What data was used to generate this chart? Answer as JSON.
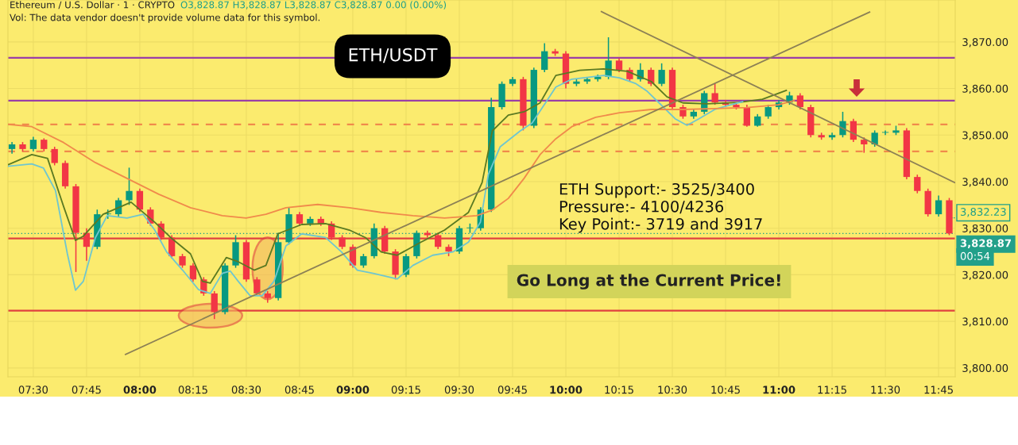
{
  "chart_data": {
    "type": "candlestick",
    "x": [
      7.4,
      7.45,
      7.5,
      7.55,
      7.6,
      7.65,
      7.7,
      7.75,
      7.8,
      7.85,
      7.9,
      7.95,
      8.0,
      8.05,
      8.1,
      8.15,
      8.2,
      8.25,
      8.3,
      8.35,
      8.4,
      8.45,
      8.5,
      8.55,
      8.6,
      8.65,
      8.7,
      8.75,
      8.8,
      8.85,
      8.9,
      8.95,
      9.0,
      9.05,
      9.1,
      9.15,
      9.2,
      9.25,
      9.3,
      9.35,
      9.4,
      9.45,
      9.5,
      9.55,
      9.6,
      9.65,
      9.7,
      9.75,
      9.8,
      9.85,
      9.9,
      9.95,
      10.0,
      10.05,
      10.1,
      10.15,
      10.2,
      10.25,
      10.3,
      10.35,
      10.4,
      10.45,
      10.5,
      10.55,
      10.6,
      10.65,
      10.7,
      10.75,
      10.8,
      10.85,
      10.9,
      10.95,
      11.0,
      11.05,
      11.1,
      11.15,
      11.2,
      11.25,
      11.3,
      11.35,
      11.4,
      11.45,
      11.5,
      11.55,
      11.6,
      11.65,
      11.7,
      11.75,
      11.8
    ],
    "ohlc": [
      [
        3847,
        3848.5,
        3846,
        3848
      ],
      [
        3848,
        3848.5,
        3846.5,
        3847
      ],
      [
        3847,
        3849.6,
        3846.5,
        3849
      ],
      [
        3849,
        3849.3,
        3846.5,
        3847
      ],
      [
        3847,
        3847.5,
        3843.5,
        3844
      ],
      [
        3844,
        3844.5,
        3838.5,
        3839
      ],
      [
        3839,
        3839.5,
        3820.6,
        3829
      ],
      [
        3829,
        3830,
        3823,
        3826
      ],
      [
        3826,
        3834,
        3825.5,
        3833
      ],
      [
        3833,
        3834,
        3832,
        3833
      ],
      [
        3833,
        3836.5,
        3832.5,
        3836
      ],
      [
        3836,
        3843,
        3835,
        3838
      ],
      [
        3838,
        3838.5,
        3833.5,
        3834
      ],
      [
        3834,
        3834.5,
        3830.5,
        3831
      ],
      [
        3831,
        3831.5,
        3827.5,
        3828
      ],
      [
        3828,
        3828.5,
        3823.5,
        3824
      ],
      [
        3824,
        3824.5,
        3821.5,
        3822
      ],
      [
        3822,
        3822.5,
        3818.5,
        3819
      ],
      [
        3819,
        3819.5,
        3815.5,
        3816
      ],
      [
        3816,
        3816.5,
        3810.5,
        3812
      ],
      [
        3812,
        3822.5,
        3811.5,
        3822
      ],
      [
        3822,
        3828.5,
        3821.5,
        3827
      ],
      [
        3827,
        3827.5,
        3818.5,
        3819
      ],
      [
        3819,
        3819.5,
        3815.5,
        3816
      ],
      [
        3816,
        3816.5,
        3814,
        3815
      ],
      [
        3815,
        3829,
        3814.5,
        3827
      ],
      [
        3827,
        3834.5,
        3826.5,
        3833
      ],
      [
        3833,
        3833.5,
        3830.5,
        3831
      ],
      [
        3831,
        3832.5,
        3830.5,
        3832
      ],
      [
        3832,
        3832.5,
        3830.5,
        3831
      ],
      [
        3831,
        3831.5,
        3827.5,
        3828
      ],
      [
        3828,
        3828.5,
        3825.5,
        3826
      ],
      [
        3826,
        3826.5,
        3821.5,
        3822
      ],
      [
        3822,
        3824.5,
        3821.5,
        3824
      ],
      [
        3824,
        3831,
        3823.5,
        3830
      ],
      [
        3830,
        3830.5,
        3824.5,
        3825
      ],
      [
        3825,
        3825.5,
        3819,
        3820
      ],
      [
        3820,
        3824.5,
        3819.5,
        3824
      ],
      [
        3824,
        3829.5,
        3823.5,
        3829
      ],
      [
        3829,
        3829.5,
        3828,
        3828.5
      ],
      [
        3828.5,
        3829,
        3825.5,
        3826
      ],
      [
        3826,
        3826.5,
        3824,
        3825
      ],
      [
        3825,
        3830.5,
        3824.5,
        3830
      ],
      [
        3830,
        3831,
        3829,
        3830
      ],
      [
        3830,
        3834.5,
        3829.5,
        3834
      ],
      [
        3834,
        3858,
        3833.5,
        3856
      ],
      [
        3856,
        3861.5,
        3855.5,
        3861
      ],
      [
        3861,
        3862.5,
        3860.5,
        3862
      ],
      [
        3862,
        3862.5,
        3851,
        3852
      ],
      [
        3852,
        3864.5,
        3851.5,
        3864
      ],
      [
        3864,
        3869.7,
        3863.5,
        3868
      ],
      [
        3868,
        3868.5,
        3867,
        3867.5
      ],
      [
        3867.5,
        3868,
        3860,
        3861
      ],
      [
        3861,
        3862,
        3860.5,
        3861.5
      ],
      [
        3861.5,
        3862.5,
        3861,
        3862
      ],
      [
        3862,
        3863,
        3861.5,
        3862.5
      ],
      [
        3862.5,
        3871,
        3862,
        3866
      ],
      [
        3866,
        3866.5,
        3863.5,
        3864
      ],
      [
        3864,
        3864.5,
        3861.5,
        3862
      ],
      [
        3862,
        3865.4,
        3861.5,
        3864
      ],
      [
        3864,
        3864.5,
        3860.5,
        3861
      ],
      [
        3861,
        3865.4,
        3860.5,
        3864
      ],
      [
        3864,
        3864.5,
        3855.5,
        3856
      ],
      [
        3856,
        3856.5,
        3853.5,
        3854
      ],
      [
        3854,
        3855.5,
        3853.5,
        3855
      ],
      [
        3855,
        3859.5,
        3854.5,
        3859
      ],
      [
        3859,
        3861.1,
        3856.5,
        3857
      ],
      [
        3857,
        3857.5,
        3856,
        3856.5
      ],
      [
        3856.5,
        3857,
        3855.5,
        3856
      ],
      [
        3856,
        3856.5,
        3851.8,
        3852
      ],
      [
        3852,
        3854.5,
        3851.8,
        3854
      ],
      [
        3854,
        3856.5,
        3853.5,
        3856
      ],
      [
        3856,
        3857.5,
        3855.5,
        3857
      ],
      [
        3857,
        3859.3,
        3856.5,
        3858.5
      ],
      [
        3858.5,
        3859,
        3855.5,
        3856
      ],
      [
        3856,
        3856.5,
        3849.5,
        3850
      ],
      [
        3850,
        3850.5,
        3849,
        3849.5
      ],
      [
        3849.5,
        3850.5,
        3849,
        3850
      ],
      [
        3850,
        3855,
        3849.5,
        3853
      ],
      [
        3853,
        3853.5,
        3848.5,
        3849
      ],
      [
        3849,
        3849.5,
        3846.2,
        3848
      ],
      [
        3848,
        3851,
        3847.5,
        3850.5
      ],
      [
        3850.5,
        3851,
        3850,
        3850.5
      ],
      [
        3850.5,
        3852,
        3850,
        3851
      ],
      [
        3851,
        3851.5,
        3840.5,
        3841
      ],
      [
        3841,
        3841.5,
        3837.5,
        3838
      ],
      [
        3838,
        3838.5,
        3832.5,
        3833
      ],
      [
        3833,
        3837,
        3832.5,
        3836
      ],
      [
        3836,
        3836.5,
        3828.5,
        3828.87
      ]
    ],
    "series": [
      {
        "type": "line",
        "color": "#5b7a22",
        "x": [
          7.381,
          7.493,
          7.567,
          7.642,
          7.698,
          7.735,
          7.828,
          7.959,
          8.07,
          8.145,
          8.238,
          8.294,
          8.331,
          8.406,
          8.462,
          8.537,
          8.592,
          8.648,
          8.76,
          8.872,
          8.984,
          9.059,
          9.133,
          9.208,
          9.32,
          9.431,
          9.543,
          9.607,
          9.655,
          9.73,
          9.804,
          9.879,
          9.953,
          10.065,
          10.177,
          10.289,
          10.401,
          10.475,
          10.55,
          10.662,
          10.811,
          10.923,
          11.035
        ],
        "values": [
          3843.6,
          3845.8,
          3845,
          3834.7,
          3827.4,
          3828.3,
          3833,
          3835.6,
          3831.3,
          3828,
          3824.5,
          3818.6,
          3818.2,
          3823.7,
          3822.8,
          3821,
          3822,
          3828.8,
          3830.8,
          3831,
          3829.6,
          3828,
          3824.9,
          3824.2,
          3827,
          3829.6,
          3833.4,
          3839.8,
          3850.9,
          3854.3,
          3855,
          3856.9,
          3862.8,
          3863.9,
          3864.2,
          3863.7,
          3861.5,
          3858.2,
          3856.9,
          3856.7,
          3857,
          3857.7,
          3859.6
        ]
      },
      {
        "type": "line",
        "color": "#6fc6cf",
        "x": [
          7.381,
          7.493,
          7.548,
          7.604,
          7.66,
          7.698,
          7.735,
          7.791,
          7.847,
          7.94,
          8.015,
          8.07,
          8.126,
          8.201,
          8.276,
          8.331,
          8.387,
          8.425,
          8.462,
          8.518,
          8.574,
          8.63,
          8.686,
          8.76,
          8.872,
          8.947,
          9.021,
          9.096,
          9.208,
          9.282,
          9.375,
          9.469,
          9.543,
          9.599,
          9.636,
          9.692,
          9.786,
          9.842,
          9.916,
          9.953,
          10.028,
          10.177,
          10.252,
          10.326,
          10.382,
          10.438,
          10.513,
          10.569,
          10.625,
          10.699,
          10.774,
          10.83
        ],
        "values": [
          3843.3,
          3843.8,
          3842.9,
          3838.1,
          3824.5,
          3816.7,
          3818.6,
          3827.9,
          3832.7,
          3832.2,
          3833,
          3829.6,
          3824.9,
          3821,
          3816.8,
          3816,
          3820.3,
          3820.8,
          3818.6,
          3815.5,
          3815.5,
          3818.6,
          3826.2,
          3828.8,
          3828,
          3824.9,
          3821,
          3820.3,
          3819.1,
          3822,
          3824.2,
          3824.9,
          3827,
          3831.3,
          3841.5,
          3847.5,
          3850.9,
          3852.6,
          3857.7,
          3860.3,
          3862,
          3862.8,
          3862.3,
          3861.1,
          3859.4,
          3856.9,
          3853.5,
          3852.1,
          3853.5,
          3855.5,
          3856.5,
          3857.2
        ]
      },
      {
        "type": "line",
        "color": "#f08a4b",
        "x": [
          7.381,
          7.493,
          7.642,
          7.791,
          7.94,
          8.089,
          8.238,
          8.387,
          8.499,
          8.592,
          8.686,
          8.835,
          8.984,
          9.133,
          9.282,
          9.431,
          9.581,
          9.655,
          9.73,
          9.804,
          9.879,
          9.953,
          10.028,
          10.14,
          10.252,
          10.401,
          10.55,
          10.699,
          10.848,
          10.997,
          11.072
        ],
        "values": [
          3852.3,
          3851.8,
          3848.4,
          3844.1,
          3840.7,
          3837.3,
          3834.4,
          3832.7,
          3832.2,
          3833,
          3834.4,
          3835.1,
          3834.4,
          3833.4,
          3832.7,
          3832.2,
          3832.7,
          3833.9,
          3836.4,
          3840.7,
          3845.8,
          3849.2,
          3851.8,
          3853.8,
          3854.8,
          3855.5,
          3855.5,
          3855.7,
          3855.9,
          3856.5,
          3857.4
        ]
      },
      {
        "type": "line",
        "color": "#8c8055",
        "x": [
          7.933,
          11.426
        ],
        "values": [
          3802.9,
          3876.4
        ]
      },
      {
        "type": "line",
        "color": "#8c8055",
        "x": [
          10.167,
          11.825
        ],
        "values": [
          3876.5,
          3839.8
        ]
      }
    ],
    "ref_lines": [
      {
        "axis": "y",
        "value": 3866.6,
        "color": "#9a3fa6",
        "line_style": "solid"
      },
      {
        "axis": "y",
        "value": 3857.4,
        "color": "#9a3fa6",
        "line_style": "solid"
      },
      {
        "axis": "y",
        "value": 3852.3,
        "color": "#f08a4b",
        "line_style": "dashed"
      },
      {
        "axis": "y",
        "value": 3846.5,
        "color": "#f08a4b",
        "line_style": "dashed"
      },
      {
        "axis": "y",
        "value": 3827.8,
        "color": "#e0413f",
        "line_style": "solid"
      },
      {
        "axis": "y",
        "value": 3812.3,
        "color": "#e0413f",
        "line_style": "solid"
      },
      {
        "axis": "y",
        "value": 3828.87,
        "color": "#22a08a",
        "line_style": "dotted",
        "label": "3,828.87"
      }
    ],
    "annotations": [
      "Ethereum / U.S. Dollar · 1 · CRYPTO",
      "O3,828.87 H3,828.87 L3,828.87 C3,828.87 0.00 (0.00%)",
      "Vol: The data vendor doesn't provide volume data for this symbol.",
      "ETH/USDT",
      "ETH Support:- 3525/3400",
      "Pressure:- 4100/4236",
      "Key Point:- 3719 and 3917",
      "Go Long at the Current Price!",
      {
        "text": "3,832.23",
        "x": 11.8,
        "y": 3832.23
      },
      "00:54"
    ],
    "xlim": [
      7.381,
      11.828
    ],
    "ylim": [
      3798.1,
      3879.0
    ],
    "xticks": [
      {
        "value": 7.5,
        "label": "07:30"
      },
      {
        "value": 7.75,
        "label": "07:45"
      },
      {
        "value": 8,
        "label": "08:00"
      },
      {
        "value": 8.25,
        "label": "08:15"
      },
      {
        "value": 8.5,
        "label": "08:30"
      },
      {
        "value": 8.75,
        "label": "08:45"
      },
      {
        "value": 9,
        "label": "09:00"
      },
      {
        "value": 9.25,
        "label": "09:15"
      },
      {
        "value": 9.5,
        "label": "09:30"
      },
      {
        "value": 9.75,
        "label": "09:45"
      },
      {
        "value": 10,
        "label": "10:00"
      },
      {
        "value": 10.25,
        "label": "10:15"
      },
      {
        "value": 10.5,
        "label": "10:30"
      },
      {
        "value": 10.75,
        "label": "10:45"
      },
      {
        "value": 11,
        "label": "11:00"
      },
      {
        "value": 11.25,
        "label": "11:15"
      },
      {
        "value": 11.5,
        "label": "11:30"
      },
      {
        "value": 11.75,
        "label": "11:45"
      }
    ],
    "yticks": [
      {
        "value": 3800,
        "label": "3,800.00"
      },
      {
        "value": 3810,
        "label": "3,810.00"
      },
      {
        "value": 3820,
        "label": "3,820.00"
      },
      {
        "value": 3830,
        "label": "3,830.00"
      },
      {
        "value": 3840,
        "label": "3,840.00"
      },
      {
        "value": 3850,
        "label": "3,850.00"
      },
      {
        "value": 3860,
        "label": "3,860.00"
      },
      {
        "value": 3870,
        "label": "3,870.00"
      }
    ],
    "grid": true
  }
}
